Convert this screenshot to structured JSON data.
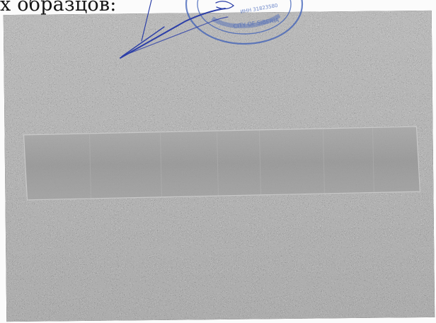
{
  "document": {
    "caption_text": "х образцов:"
  },
  "stamp": {
    "lines": [
      "ИНН 31823580",
      "CITY OF SIBERIA"
    ],
    "color": "#3d5fb8"
  },
  "colors": {
    "stamp_blue": "#3d5fb8",
    "pen_blue": "#2c3fa8",
    "strip_fill": "#9a9a9a"
  }
}
